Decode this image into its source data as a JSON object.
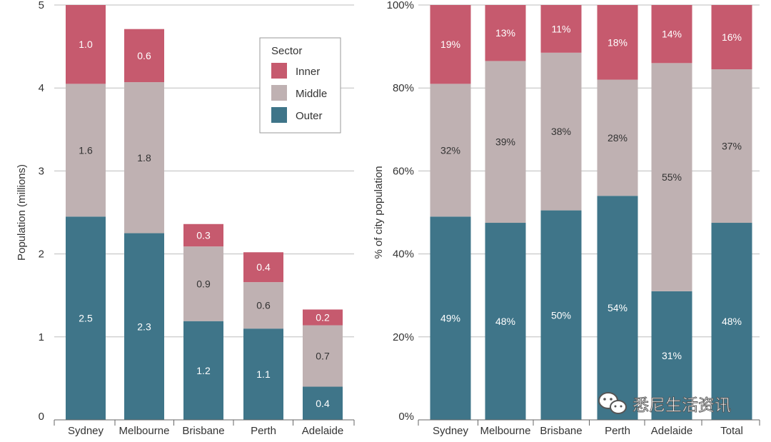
{
  "colors": {
    "inner": "#c65a6e",
    "middle": "#bfb1b2",
    "outer": "#3f7589",
    "grid": "#bdbdbd",
    "axis": "#666666",
    "text": "#333333",
    "bar_label": "#ffffff",
    "mid_label": "#333333"
  },
  "legend": {
    "title": "Sector",
    "items": [
      {
        "key": "inner",
        "label": "Inner"
      },
      {
        "key": "middle",
        "label": "Middle"
      },
      {
        "key": "outer",
        "label": "Outer"
      }
    ]
  },
  "watermark": {
    "icon": "wechat-icon",
    "text": "悉尼生活资讯"
  },
  "chart_data": [
    {
      "type": "bar",
      "stacked": true,
      "title": "",
      "xlabel": "",
      "ylabel": "Population (millions)",
      "ylim": [
        0,
        5
      ],
      "yticks": [
        {
          "value": 0,
          "label": "0"
        },
        {
          "value": 1,
          "label": "1"
        },
        {
          "value": 2,
          "label": "2"
        },
        {
          "value": 3,
          "label": "3"
        },
        {
          "value": 4,
          "label": "4"
        },
        {
          "value": 5,
          "label": "5"
        }
      ],
      "grid": true,
      "legend_position": "top-right",
      "categories": [
        "Sydney",
        "Melbourne",
        "Brisbane",
        "Perth",
        "Adelaide"
      ],
      "series": [
        {
          "name": "Outer",
          "key": "outer",
          "values": [
            2.45,
            2.25,
            1.19,
            1.1,
            0.4
          ],
          "labels": [
            "2.5",
            "2.3",
            "1.2",
            "1.1",
            "0.4"
          ]
        },
        {
          "name": "Middle",
          "key": "middle",
          "values": [
            1.6,
            1.82,
            0.9,
            0.56,
            0.74
          ],
          "labels": [
            "1.6",
            "1.8",
            "0.9",
            "0.6",
            "0.7"
          ]
        },
        {
          "name": "Inner",
          "key": "inner",
          "values": [
            0.95,
            0.64,
            0.27,
            0.36,
            0.19
          ],
          "labels": [
            "1.0",
            "0.6",
            "0.3",
            "0.4",
            "0.2"
          ]
        }
      ]
    },
    {
      "type": "bar",
      "stacked": true,
      "title": "",
      "xlabel": "",
      "ylabel": "% of city population",
      "ylim": [
        0,
        100
      ],
      "yticks": [
        {
          "value": 0,
          "label": "0%"
        },
        {
          "value": 20,
          "label": "20%"
        },
        {
          "value": 40,
          "label": "40%"
        },
        {
          "value": 60,
          "label": "60%"
        },
        {
          "value": 80,
          "label": "80%"
        },
        {
          "value": 100,
          "label": "100%"
        }
      ],
      "grid": true,
      "categories": [
        "Sydney",
        "Melbourne",
        "Brisbane",
        "Perth",
        "Adelaide",
        "Total"
      ],
      "series": [
        {
          "name": "Outer",
          "key": "outer",
          "values": [
            49,
            47.5,
            50.5,
            54,
            31,
            47.5
          ],
          "labels": [
            "49%",
            "48%",
            "50%",
            "54%",
            "31%",
            "48%"
          ]
        },
        {
          "name": "Middle",
          "key": "middle",
          "values": [
            32,
            39,
            38,
            28,
            55,
            37
          ],
          "labels": [
            "32%",
            "39%",
            "38%",
            "28%",
            "55%",
            "37%"
          ]
        },
        {
          "name": "Inner",
          "key": "inner",
          "values": [
            19,
            13.5,
            11.5,
            18,
            14,
            15.5
          ],
          "labels": [
            "19%",
            "13%",
            "11%",
            "18%",
            "14%",
            "16%"
          ]
        }
      ]
    }
  ]
}
